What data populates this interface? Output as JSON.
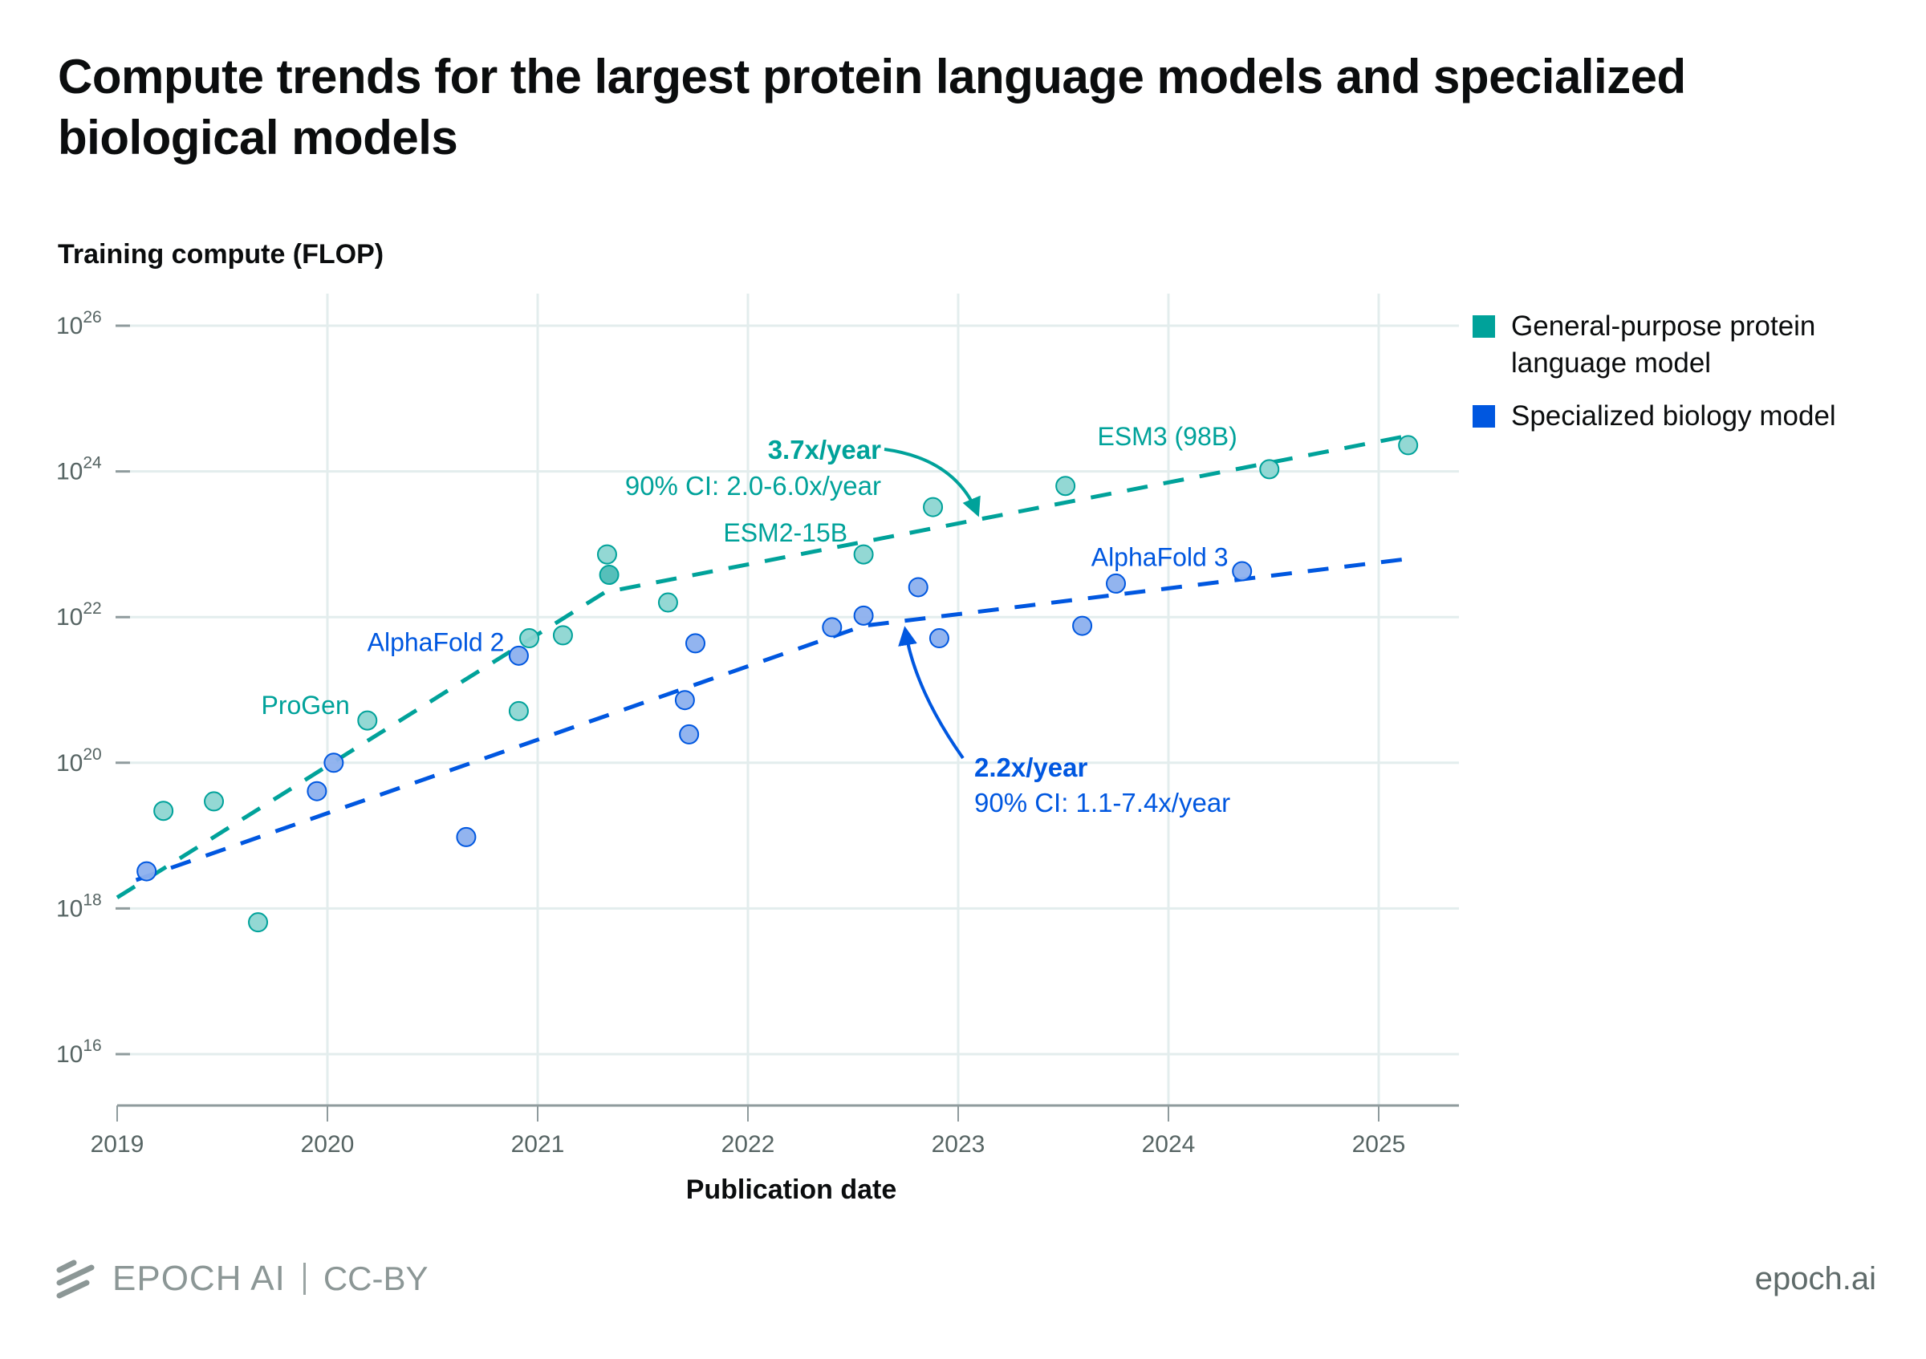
{
  "title": "Compute trends for the largest protein language models and specialized biological models",
  "footer": {
    "brand": "EPOCH AI",
    "license": "CC-BY",
    "site": "epoch.ai"
  },
  "chart_data": {
    "type": "scatter",
    "title": "Compute trends for the largest protein language models and specialized biological models",
    "xlabel": "Publication date",
    "ylabel": "Training compute (FLOP)",
    "yscale": "log",
    "xlim": [
      2019,
      2025.38
    ],
    "ylim_log10": [
      15.3,
      26
    ],
    "x_ticks": [
      2019,
      2020,
      2021,
      2022,
      2023,
      2024,
      2025
    ],
    "x_tick_labels": [
      "2019",
      "2020",
      "2021",
      "2022",
      "2023",
      "2024",
      "2025"
    ],
    "y_ticks_log10": [
      16,
      18,
      20,
      22,
      24,
      26
    ],
    "y_tick_base": "10",
    "y_tick_exponents": [
      "16",
      "18",
      "20",
      "22",
      "24",
      "26"
    ],
    "grid": true,
    "legend_position": "top-right",
    "colors": {
      "general": "#00a29a",
      "general_fill": "#8dd6d2",
      "general_dark_fill": "#4dbcb6",
      "specialized": "#0057e0",
      "specialized_fill": "#8cb0ee",
      "grid": "#e3eded",
      "axis": "#8f9b9d",
      "tick_text": "#566463"
    },
    "series": [
      {
        "name": "General-purpose protein language model",
        "key": "general",
        "points": [
          {
            "x": 2019.22,
            "log10_flop": 19.34
          },
          {
            "x": 2019.46,
            "log10_flop": 19.47
          },
          {
            "x": 2019.67,
            "log10_flop": 17.81
          },
          {
            "x": 2020.19,
            "log10_flop": 20.58,
            "label": "ProGen"
          },
          {
            "x": 2020.91,
            "log10_flop": 20.71
          },
          {
            "x": 2020.96,
            "log10_flop": 21.71
          },
          {
            "x": 2021.12,
            "log10_flop": 21.75
          },
          {
            "x": 2021.33,
            "log10_flop": 22.86
          },
          {
            "x": 2021.34,
            "log10_flop": 22.58,
            "overlap": true
          },
          {
            "x": 2021.62,
            "log10_flop": 22.2
          },
          {
            "x": 2022.55,
            "log10_flop": 22.86,
            "label": "ESM2-15B"
          },
          {
            "x": 2022.88,
            "log10_flop": 23.51
          },
          {
            "x": 2023.51,
            "log10_flop": 23.8
          },
          {
            "x": 2024.48,
            "log10_flop": 24.03,
            "label": "ESM3 (98B)"
          },
          {
            "x": 2025.14,
            "log10_flop": 24.36
          }
        ],
        "trend": [
          {
            "x": 2019.0,
            "log10_flop": 18.15
          },
          {
            "x": 2021.32,
            "log10_flop": 22.34
          },
          {
            "x": 2025.14,
            "log10_flop": 24.49
          }
        ]
      },
      {
        "name": "Specialized biology model",
        "key": "specialized",
        "points": [
          {
            "x": 2019.14,
            "log10_flop": 18.51
          },
          {
            "x": 2019.95,
            "log10_flop": 19.61
          },
          {
            "x": 2020.03,
            "log10_flop": 20.0
          },
          {
            "x": 2020.66,
            "log10_flop": 18.98
          },
          {
            "x": 2020.91,
            "log10_flop": 21.47,
            "label": "AlphaFold 2"
          },
          {
            "x": 2021.7,
            "log10_flop": 20.86
          },
          {
            "x": 2021.72,
            "log10_flop": 20.39
          },
          {
            "x": 2021.75,
            "log10_flop": 21.64
          },
          {
            "x": 2022.4,
            "log10_flop": 21.86
          },
          {
            "x": 2022.55,
            "log10_flop": 22.02
          },
          {
            "x": 2022.81,
            "log10_flop": 22.41
          },
          {
            "x": 2022.91,
            "log10_flop": 21.71
          },
          {
            "x": 2023.59,
            "log10_flop": 21.88
          },
          {
            "x": 2023.75,
            "log10_flop": 22.46,
            "label": "AlphaFold 3"
          },
          {
            "x": 2024.35,
            "log10_flop": 22.63
          }
        ],
        "trend": [
          {
            "x": 2019.09,
            "log10_flop": 18.39
          },
          {
            "x": 2022.55,
            "log10_flop": 21.88
          },
          {
            "x": 2025.14,
            "log10_flop": 22.8
          }
        ]
      }
    ],
    "annotations": [
      {
        "series": "general",
        "rate": "3.7x/year",
        "ci": "90% CI: 2.0-6.0x/year"
      },
      {
        "series": "specialized",
        "rate": "2.2x/year",
        "ci": "90% CI: 1.1-7.4x/year"
      }
    ],
    "point_labels": [
      {
        "text": "ProGen",
        "series": "general"
      },
      {
        "text": "AlphaFold 2",
        "series": "specialized"
      },
      {
        "text": "ESM2-15B",
        "series": "general"
      },
      {
        "text": "ESM3 (98B)",
        "series": "general"
      },
      {
        "text": "AlphaFold 3",
        "series": "specialized"
      }
    ]
  }
}
